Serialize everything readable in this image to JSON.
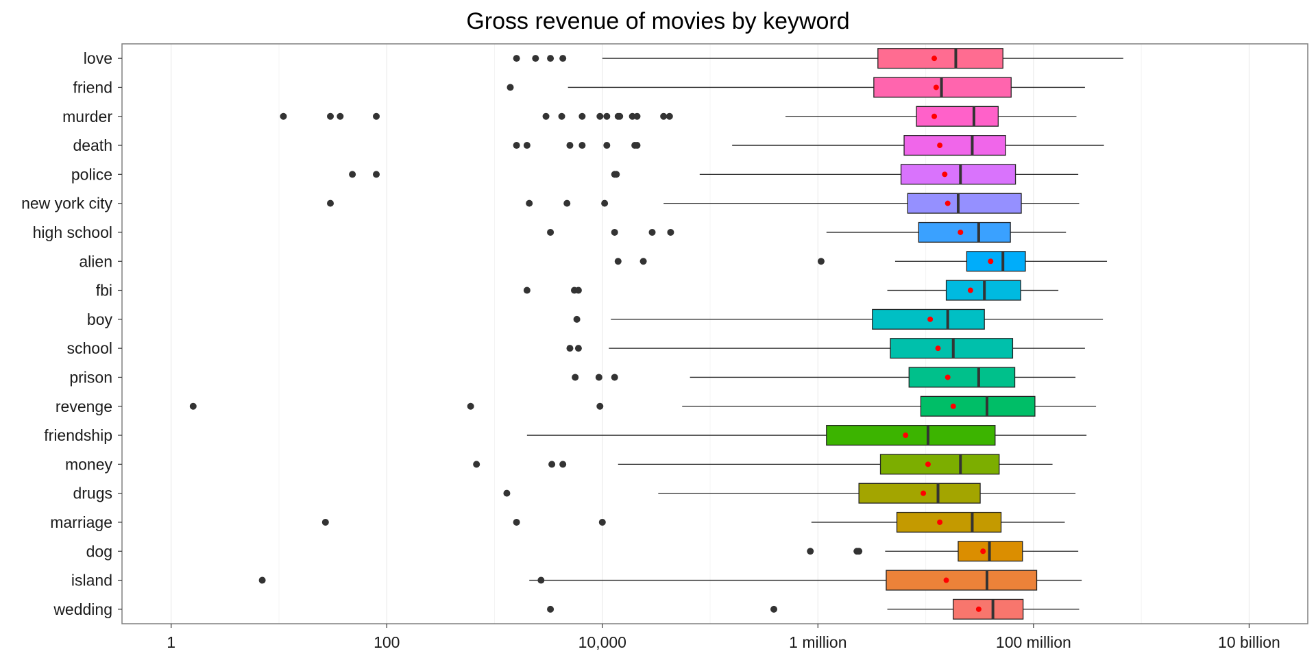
{
  "chart_data": {
    "type": "boxplot",
    "orientation": "horizontal",
    "title": "Gross revenue of movies by keyword",
    "xlabel": "",
    "ylabel": "",
    "x_scale": "log10",
    "xlim": [
      0.35,
      35000000000
    ],
    "x_ticks": [
      {
        "value": 1,
        "label": "1"
      },
      {
        "value": 100,
        "label": "100"
      },
      {
        "value": 10000,
        "label": "10,000"
      },
      {
        "value": 1000000,
        "label": "1 million"
      },
      {
        "value": 100000000,
        "label": "100 million"
      },
      {
        "value": 10000000000,
        "label": "10 billion"
      }
    ],
    "grid": true,
    "legend": "none",
    "mean_marker_color": "#ff0000",
    "categories": [
      {
        "name": "love",
        "color": "#FF6C91",
        "whisker_low": 10000,
        "q1": 3600000,
        "median": 19000000,
        "q3": 52000000,
        "whisker_high": 680000000,
        "mean": 12000000,
        "outliers": [
          1600,
          2400,
          3300,
          4300
        ]
      },
      {
        "name": "friend",
        "color": "#FF65AE",
        "whisker_low": 4800,
        "q1": 3300000,
        "median": 14000000,
        "q3": 62000000,
        "whisker_high": 300000000,
        "mean": 12500000,
        "outliers": [
          1400
        ]
      },
      {
        "name": "murder",
        "color": "#FF61C9",
        "whisker_low": 500000,
        "q1": 8200000,
        "median": 28000000,
        "q3": 47000000,
        "whisker_high": 250000000,
        "mean": 12000000,
        "outliers": [
          11,
          30,
          37,
          80,
          3000,
          4200,
          6500,
          9500,
          11000,
          14000,
          14500,
          19000,
          21000,
          37000,
          42000
        ]
      },
      {
        "name": "death",
        "color": "#F066EA",
        "whisker_low": 160000,
        "q1": 6300000,
        "median": 27000000,
        "q3": 55000000,
        "whisker_high": 450000000,
        "mean": 13500000,
        "outliers": [
          1600,
          2000,
          5000,
          6500,
          11000,
          20000,
          21000
        ]
      },
      {
        "name": "police",
        "color": "#D973FC",
        "whisker_low": 80000,
        "q1": 5900000,
        "median": 21000000,
        "q3": 68000000,
        "whisker_high": 260000000,
        "mean": 15000000,
        "outliers": [
          48,
          80,
          13000,
          13500
        ]
      },
      {
        "name": "new york city",
        "color": "#9590FF",
        "whisker_low": 37000,
        "q1": 6800000,
        "median": 20000000,
        "q3": 77000000,
        "whisker_high": 265000000,
        "mean": 16000000,
        "outliers": [
          30,
          2100,
          4700,
          10500
        ]
      },
      {
        "name": "high school",
        "color": "#3AA1FF",
        "whisker_low": 1200000,
        "q1": 8600000,
        "median": 31000000,
        "q3": 61000000,
        "whisker_high": 200000000,
        "mean": 21000000,
        "outliers": [
          3300,
          13000,
          29000,
          43000
        ]
      },
      {
        "name": "alien",
        "color": "#00ADFA",
        "whisker_low": 5200000,
        "q1": 24000000,
        "median": 52000000,
        "q3": 84000000,
        "whisker_high": 480000000,
        "mean": 40000000,
        "outliers": [
          14000,
          24000,
          1070000
        ]
      },
      {
        "name": "fbi",
        "color": "#00BAE0",
        "whisker_low": 4400000,
        "q1": 15500000,
        "median": 35000000,
        "q3": 76000000,
        "whisker_high": 170000000,
        "mean": 26000000,
        "outliers": [
          2000,
          5500,
          6000
        ]
      },
      {
        "name": "boy",
        "color": "#00BFC4",
        "whisker_low": 12000,
        "q1": 3200000,
        "median": 16000000,
        "q3": 35000000,
        "whisker_high": 440000000,
        "mean": 11000000,
        "outliers": [
          5800
        ]
      },
      {
        "name": "school",
        "color": "#00C0AB",
        "whisker_low": 11500,
        "q1": 4700000,
        "median": 18000000,
        "q3": 64000000,
        "whisker_high": 300000000,
        "mean": 13000000,
        "outliers": [
          5000,
          6000
        ]
      },
      {
        "name": "prison",
        "color": "#00C08B",
        "whisker_low": 65000,
        "q1": 7000000,
        "median": 31000000,
        "q3": 67000000,
        "whisker_high": 245000000,
        "mean": 16000000,
        "outliers": [
          5600,
          9300,
          13000
        ]
      },
      {
        "name": "revenge",
        "color": "#00BE67",
        "whisker_low": 55000,
        "q1": 9000000,
        "median": 37000000,
        "q3": 103000000,
        "whisker_high": 380000000,
        "mean": 18000000,
        "outliers": [
          1.6,
          600,
          9500
        ]
      },
      {
        "name": "friendship",
        "color": "#3CB400",
        "whisker_low": 2000,
        "q1": 1200000,
        "median": 10500000,
        "q3": 44000000,
        "whisker_high": 310000000,
        "mean": 6500000,
        "outliers": []
      },
      {
        "name": "money",
        "color": "#7CAE00",
        "whisker_low": 14000,
        "q1": 3800000,
        "median": 21000000,
        "q3": 48000000,
        "whisker_high": 150000000,
        "mean": 10500000,
        "outliers": [
          680,
          3400,
          4300
        ]
      },
      {
        "name": "drugs",
        "color": "#A3A500",
        "whisker_low": 33000,
        "q1": 2400000,
        "median": 13000000,
        "q3": 32000000,
        "whisker_high": 245000000,
        "mean": 9500000,
        "outliers": [
          1300
        ]
      },
      {
        "name": "marriage",
        "color": "#C49A00",
        "whisker_low": 870000,
        "q1": 5400000,
        "median": 27000000,
        "q3": 50000000,
        "whisker_high": 195000000,
        "mean": 13500000,
        "outliers": [
          27,
          1600,
          10000
        ]
      },
      {
        "name": "dog",
        "color": "#DB8E00",
        "whisker_low": 4200000,
        "q1": 20000000,
        "median": 39000000,
        "q3": 79000000,
        "whisker_high": 260000000,
        "mean": 34000000,
        "outliers": [
          850000,
          2300000,
          2400000
        ]
      },
      {
        "name": "island",
        "color": "#EC8239",
        "whisker_low": 2100,
        "q1": 4300000,
        "median": 37000000,
        "q3": 107000000,
        "whisker_high": 280000000,
        "mean": 15500000,
        "outliers": [
          7,
          2700
        ]
      },
      {
        "name": "wedding",
        "color": "#F8766D",
        "whisker_low": 4400000,
        "q1": 18000000,
        "median": 42000000,
        "q3": 80000000,
        "whisker_high": 265000000,
        "mean": 31000000,
        "outliers": [
          3300,
          390000
        ]
      }
    ]
  }
}
